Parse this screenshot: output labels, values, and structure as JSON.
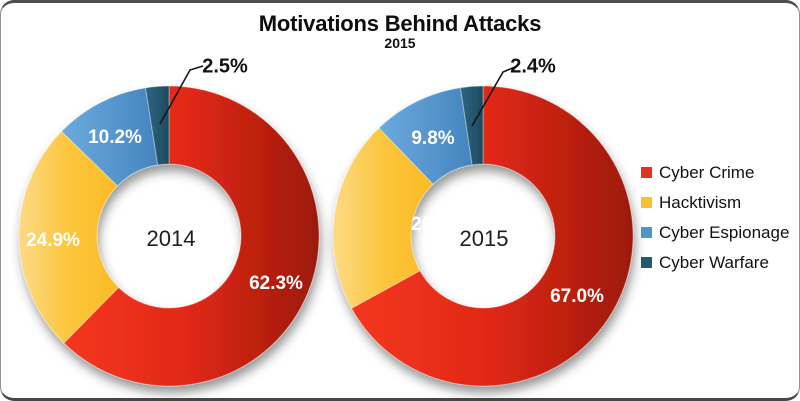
{
  "header": {
    "title": "Motivations Behind Attacks",
    "subtitle": "2015"
  },
  "legend": {
    "position": "right",
    "items": [
      {
        "label": "Cyber Crime",
        "color": "#e2331e"
      },
      {
        "label": "Hacktivism",
        "color": "#fac02d"
      },
      {
        "label": "Cyber Espionage",
        "color": "#4d96cc"
      },
      {
        "label": "Cyber Warfare",
        "color": "#235a70"
      }
    ]
  },
  "chart_data": [
    {
      "type": "pie",
      "subtype": "donut",
      "title": "Motivations Behind Attacks",
      "subtitle": "2015",
      "center_label": "2014",
      "categories": [
        "Cyber Crime",
        "Hacktivism",
        "Cyber Espionage",
        "Cyber Warfare"
      ],
      "values": [
        62.3,
        24.9,
        10.2,
        2.5
      ],
      "labels": [
        "62.3%",
        "24.9%",
        "10.2%",
        "2.5%"
      ],
      "start_angle_deg": 0,
      "direction": "clockwise",
      "legend_position": "right"
    },
    {
      "type": "pie",
      "subtype": "donut",
      "title": "Motivations Behind Attacks",
      "subtitle": "2015",
      "center_label": "2015",
      "categories": [
        "Cyber Crime",
        "Hacktivism",
        "Cyber Espionage",
        "Cyber Warfare"
      ],
      "values": [
        67.0,
        20.8,
        9.8,
        2.4
      ],
      "labels": [
        "67.0%",
        "20.8%",
        "9.8%",
        "2.4%"
      ],
      "start_angle_deg": 0,
      "direction": "clockwise",
      "legend_position": "right"
    }
  ],
  "colors": {
    "slice_gradients": [
      [
        "#f4371f",
        "#e02815",
        "#9c190b"
      ],
      [
        "#fdda85",
        "#fcc63c",
        "#fbba24"
      ],
      [
        "#6cabdc",
        "#4484c0"
      ],
      [
        "#2e6680",
        "#1d4a5f"
      ]
    ],
    "callout_line": "#161616",
    "frame_border": "#949494",
    "frame_accent": "#4e4e4e"
  }
}
